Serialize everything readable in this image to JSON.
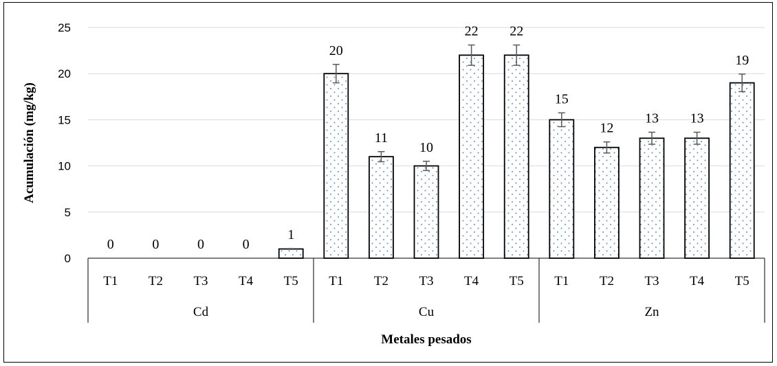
{
  "chart_data": {
    "type": "bar",
    "title": "",
    "xlabel": "Metales pesados",
    "ylabel": "Acumulación (mg/kg)",
    "ylim": [
      0,
      25
    ],
    "yticks": [
      "0",
      "5",
      "10",
      "15",
      "20",
      "25"
    ],
    "grid": true,
    "groups": [
      {
        "name": "Cd",
        "categories": [
          "T1",
          "T2",
          "T3",
          "T4",
          "T5"
        ],
        "values": [
          0,
          0,
          0,
          0,
          1
        ],
        "errors": [
          0,
          0,
          0,
          0,
          0.05
        ]
      },
      {
        "name": "Cu",
        "categories": [
          "T1",
          "T2",
          "T3",
          "T4",
          "T5"
        ],
        "values": [
          20,
          11,
          10,
          22,
          22
        ],
        "errors": [
          1.0,
          0.55,
          0.5,
          1.1,
          1.1
        ]
      },
      {
        "name": "Zn",
        "categories": [
          "T1",
          "T2",
          "T3",
          "T4",
          "T5"
        ],
        "values": [
          15,
          12,
          13,
          13,
          19
        ],
        "errors": [
          0.75,
          0.6,
          0.65,
          0.65,
          0.95
        ]
      }
    ],
    "data_labels": [
      [
        "0",
        "0",
        "0",
        "0",
        "1"
      ],
      [
        "20",
        "11",
        "10",
        "22",
        "22"
      ],
      [
        "15",
        "12",
        "13",
        "13",
        "19"
      ]
    ],
    "bar_pattern": "dotted",
    "colors": {
      "bar_fill": "#ffffff",
      "bar_stroke": "#000000",
      "dots": "#5b8fc9",
      "grid": "#d9d9d9",
      "error_bar": "#595959"
    }
  }
}
